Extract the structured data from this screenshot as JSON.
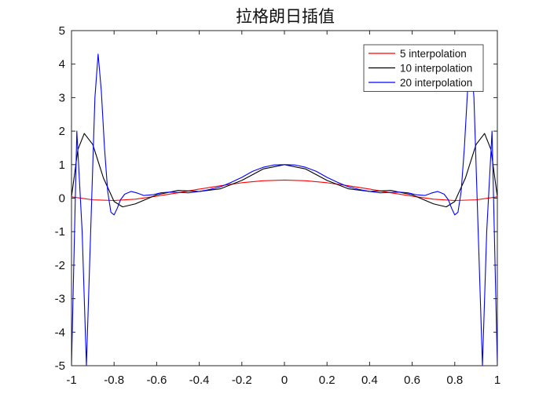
{
  "chart_data": {
    "type": "line",
    "title": "拉格朗日插值",
    "xlabel": "",
    "ylabel": "",
    "xlim": [
      -1,
      1
    ],
    "ylim": [
      -5,
      5
    ],
    "xticks": [
      -1,
      -0.8,
      -0.6,
      -0.4,
      -0.2,
      0,
      0.2,
      0.4,
      0.6,
      0.8,
      1
    ],
    "xtick_labels": [
      "-1",
      "-0.8",
      "-0.6",
      "-0.4",
      "-0.2",
      "0",
      "0.2",
      "0.4",
      "0.6",
      "0.8",
      "1"
    ],
    "yticks": [
      5,
      4,
      3,
      2,
      1,
      0,
      -1,
      -2,
      -3,
      -4,
      -5
    ],
    "ytick_labels": [
      "5",
      "4",
      "3",
      "2",
      "1",
      "0",
      "-1",
      "-2",
      "-3",
      "-4",
      "-5"
    ],
    "grid": false,
    "legend_position": "top-right",
    "series": [
      {
        "name": "5 interpolation",
        "color": "#ff0000",
        "x": [
          -1,
          -0.9,
          -0.8,
          -0.7,
          -0.6,
          -0.5,
          -0.4,
          -0.3,
          -0.2,
          -0.1,
          0,
          0.1,
          0.2,
          0.3,
          0.4,
          0.5,
          0.6,
          0.7,
          0.8,
          0.9,
          1
        ],
        "y": [
          0.04,
          -0.05,
          -0.07,
          -0.03,
          0.06,
          0.16,
          0.27,
          0.37,
          0.46,
          0.52,
          0.54,
          0.52,
          0.46,
          0.37,
          0.27,
          0.16,
          0.06,
          -0.03,
          -0.07,
          -0.05,
          0.04
        ]
      },
      {
        "name": "10 interpolation",
        "color": "#000000",
        "x": [
          -1,
          -0.97,
          -0.94,
          -0.9,
          -0.85,
          -0.8,
          -0.76,
          -0.7,
          -0.6,
          -0.5,
          -0.4,
          -0.3,
          -0.2,
          -0.1,
          0,
          0.1,
          0.2,
          0.3,
          0.4,
          0.5,
          0.6,
          0.7,
          0.76,
          0.8,
          0.85,
          0.9,
          0.94,
          0.97,
          1
        ],
        "y": [
          0.04,
          1.45,
          1.93,
          1.6,
          0.6,
          -0.1,
          -0.26,
          -0.17,
          0.1,
          0.23,
          0.2,
          0.28,
          0.53,
          0.87,
          1.0,
          0.87,
          0.53,
          0.28,
          0.2,
          0.23,
          0.1,
          -0.17,
          -0.26,
          -0.1,
          0.6,
          1.6,
          1.93,
          1.45,
          0.04
        ]
      },
      {
        "name": "20 interpolation",
        "color": "#0000ff",
        "x": [
          -1,
          -0.975,
          -0.95,
          -0.93,
          -0.91,
          -0.89,
          -0.875,
          -0.86,
          -0.845,
          -0.83,
          -0.815,
          -0.8,
          -0.785,
          -0.77,
          -0.75,
          -0.72,
          -0.69,
          -0.66,
          -0.62,
          -0.58,
          -0.54,
          -0.5,
          -0.45,
          -0.4,
          -0.35,
          -0.3,
          -0.25,
          -0.2,
          -0.15,
          -0.1,
          -0.05,
          0,
          0.05,
          0.1,
          0.15,
          0.2,
          0.25,
          0.3,
          0.35,
          0.4,
          0.45,
          0.5,
          0.54,
          0.58,
          0.62,
          0.66,
          0.69,
          0.72,
          0.75,
          0.77,
          0.785,
          0.8,
          0.815,
          0.83,
          0.845,
          0.86,
          0.875,
          0.89,
          0.91,
          0.93,
          0.95,
          0.975,
          1
        ],
        "y": [
          -5.0,
          2.0,
          -1.0,
          -5.0,
          -1.0,
          3.0,
          4.3,
          3.2,
          1.5,
          0.2,
          -0.42,
          -0.5,
          -0.3,
          -0.05,
          0.12,
          0.2,
          0.15,
          0.08,
          0.1,
          0.16,
          0.18,
          0.17,
          0.16,
          0.2,
          0.26,
          0.34,
          0.47,
          0.62,
          0.8,
          0.92,
          0.99,
          1.0,
          0.99,
          0.92,
          0.8,
          0.62,
          0.47,
          0.34,
          0.26,
          0.2,
          0.16,
          0.17,
          0.18,
          0.16,
          0.1,
          0.08,
          0.15,
          0.2,
          0.12,
          -0.05,
          -0.3,
          -0.5,
          -0.42,
          0.2,
          1.5,
          3.2,
          4.3,
          3.0,
          -1.0,
          -5.0,
          -1.0,
          2.0,
          -5.0
        ]
      }
    ]
  }
}
